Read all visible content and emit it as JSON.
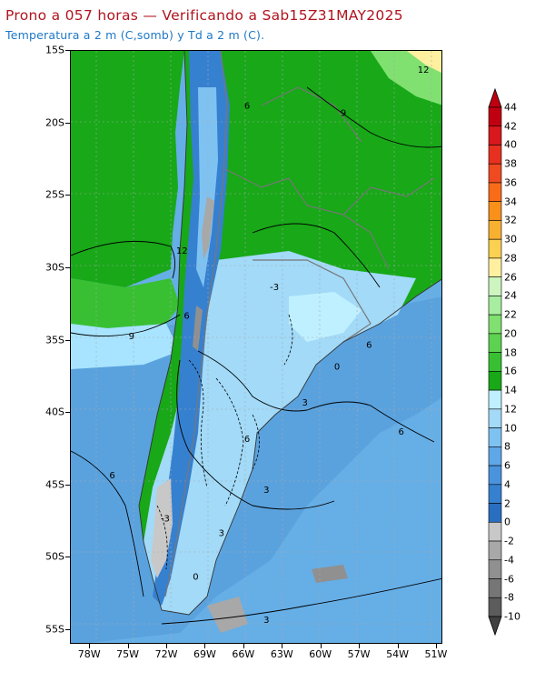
{
  "title": "Prono a 057 horas — Verificando a Sab15Z31MAY2025",
  "subtitle": "Temperatura a 2 m (C,somb) y Td a 2 m (C).",
  "colors": {
    "title": "#b0141e",
    "subtitle": "#1e78c8"
  },
  "map": {
    "lat_ticks": [
      "15S",
      "20S",
      "25S",
      "30S",
      "35S",
      "40S",
      "45S",
      "50S",
      "55S"
    ],
    "lon_ticks": [
      "78W",
      "75W",
      "72W",
      "69W",
      "66W",
      "63W",
      "60W",
      "57W",
      "54W",
      "51W"
    ],
    "lat_range": [
      -56,
      -15
    ],
    "lon_range": [
      -79.5,
      -50.5
    ],
    "contour_labels": [
      {
        "text": "12",
        "lon": -52.5,
        "lat": -16.5
      },
      {
        "text": "9",
        "lon": -58.5,
        "lat": -19.5
      },
      {
        "text": "6",
        "lon": -66.0,
        "lat": -19.0
      },
      {
        "text": "12",
        "lon": -71.3,
        "lat": -29.0
      },
      {
        "text": "6",
        "lon": -70.7,
        "lat": -33.5
      },
      {
        "text": "9",
        "lon": -75.0,
        "lat": -34.9
      },
      {
        "text": "-3",
        "lon": -64.0,
        "lat": -31.5
      },
      {
        "text": "6",
        "lon": -56.5,
        "lat": -35.5
      },
      {
        "text": "0",
        "lon": -59.0,
        "lat": -37.0
      },
      {
        "text": "3",
        "lon": -61.5,
        "lat": -39.5
      },
      {
        "text": "6",
        "lon": -54.0,
        "lat": -41.5
      },
      {
        "text": "6",
        "lon": -66.0,
        "lat": -42.0
      },
      {
        "text": "3",
        "lon": -64.5,
        "lat": -45.5
      },
      {
        "text": "6",
        "lon": -76.5,
        "lat": -44.5
      },
      {
        "text": "3",
        "lon": -68.0,
        "lat": -48.5
      },
      {
        "text": "0",
        "lon": -70.0,
        "lat": -51.5
      },
      {
        "text": "3",
        "lon": -64.5,
        "lat": -54.5
      },
      {
        "text": "-3",
        "lon": -72.5,
        "lat": -47.5
      }
    ]
  },
  "colorbar": {
    "labels": [
      "44",
      "42",
      "40",
      "38",
      "36",
      "34",
      "32",
      "30",
      "28",
      "26",
      "24",
      "22",
      "20",
      "18",
      "16",
      "14",
      "12",
      "10",
      "8",
      "6",
      "4",
      "2",
      "0",
      "-2",
      "-4",
      "-6",
      "-8",
      "-10"
    ],
    "colors": [
      "#c00010",
      "#d8181c",
      "#e83020",
      "#f04a20",
      "#f86c18",
      "#f8901a",
      "#f8b030",
      "#fcd050",
      "#fff0a0",
      "#ccf5c0",
      "#a8eea0",
      "#80e070",
      "#5cd250",
      "#38c032",
      "#18a818",
      "#bff0ff",
      "#a2daf8",
      "#7ec2f2",
      "#5fa8e8",
      "#4a94de",
      "#3680d0",
      "#2a6ec0",
      "#c8c8c8",
      "#a8a8a8",
      "#909090",
      "#767676",
      "#5c5c5c"
    ]
  }
}
